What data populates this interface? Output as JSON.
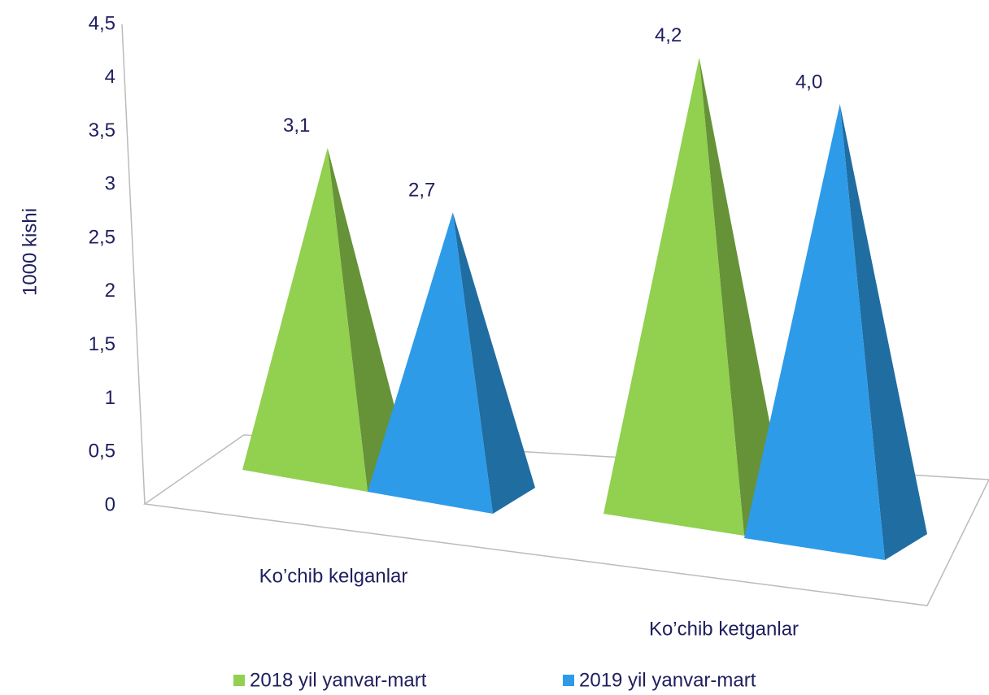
{
  "chart_data": {
    "type": "bar",
    "ylabel": "1000 kishi",
    "categories": [
      "Ko’chib kelganlar",
      "Ko’chib ketganlar"
    ],
    "series": [
      {
        "name": "2018 yil yanvar-mart",
        "color": "#92d050",
        "values": [
          3.1,
          4.2
        ],
        "value_labels": [
          "3,1",
          "4,2"
        ]
      },
      {
        "name": "2019 yil yanvar-mart",
        "color": "#2e9be8",
        "values": [
          2.7,
          4.0
        ],
        "value_labels": [
          "2,7",
          "4,0"
        ]
      }
    ],
    "ylim": [
      0,
      4.5
    ],
    "yticks": [
      0,
      {
        "value": 0.5,
        "label": "0,5"
      },
      1,
      {
        "value": 1.5,
        "label": "1,5"
      },
      2,
      {
        "value": 2.5,
        "label": "2,5"
      },
      3,
      {
        "value": 3.5,
        "label": "3,5"
      },
      4,
      {
        "value": 4.5,
        "label": "4,5"
      }
    ],
    "grid": false,
    "legend": "bottom"
  }
}
